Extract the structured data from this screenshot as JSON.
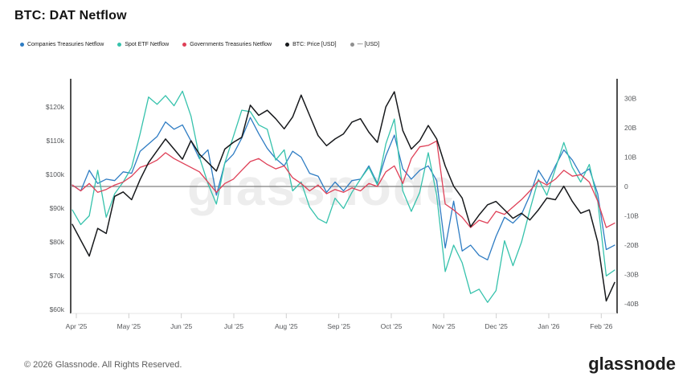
{
  "title": "BTC: DAT Netflow",
  "watermark": "glassnode",
  "footer": {
    "copyright": "© 2026 Glassnode. All Rights Reserved.",
    "logo_text": "glassnode"
  },
  "legend": [
    {
      "label": "Companies Treasuries Netflow",
      "color": "#2e7cc3"
    },
    {
      "label": "Spot ETF Netflow",
      "color": "#36c2ac"
    },
    {
      "label": "Governments Treasuries Netflow",
      "color": "#df4057"
    },
    {
      "label": "BTC: Price [USD]",
      "color": "#17191c"
    },
    {
      "label": "--- [USD]",
      "color": "#8f8f8f"
    }
  ],
  "chart_data": {
    "type": "line",
    "title": "BTC: DAT Netflow",
    "grid": false,
    "x_span": [
      "Apr '25",
      "Feb '26"
    ],
    "x_tick_labels": [
      "Apr '25",
      "May '25",
      "Jun '25",
      "Jul '25",
      "Aug '25",
      "Sep '25",
      "Oct '25",
      "Nov '25",
      "Dec '25",
      "Jan '26",
      "Feb '26"
    ],
    "left_axis": {
      "unit": "USD",
      "tick_labels": [
        "$120k",
        "$110k",
        "$100k",
        "$90k",
        "$80k",
        "$70k",
        "$60k"
      ],
      "tick_values": [
        120,
        110,
        100,
        90,
        80,
        70,
        60
      ],
      "range_k": [
        58,
        128
      ]
    },
    "right_axis": {
      "unit": "USD billions",
      "tick_labels": [
        "30B",
        "20B",
        "10B",
        "0",
        "-10B",
        "-20B",
        "-30B",
        "-40B"
      ],
      "tick_values": [
        30,
        20,
        10,
        0,
        -10,
        -20,
        -30,
        -40
      ],
      "range_b": [
        -43,
        37
      ]
    },
    "note": "Series values are evenly spaced in time from Apr 1 '25 to Feb 11 '26 (65 samples, ~5-day step). Netflow series read on right axis (billions USD); BTC price on left axis (thousands USD).",
    "series": [
      {
        "name": "--- [USD]",
        "axis": "right",
        "color": "#7f7f7f",
        "constant_value": 0
      },
      {
        "name": "Companies Treasuries Netflow",
        "axis": "right",
        "color": "#2e7cc3",
        "values": [
          0.5,
          -1.5,
          5.5,
          1.0,
          2.5,
          2.0,
          5.0,
          4.5,
          12.0,
          14.5,
          17.0,
          22.0,
          19.5,
          21.0,
          15.5,
          9.5,
          12.5,
          -3.0,
          8.0,
          11.0,
          16.5,
          23.5,
          18.0,
          13.0,
          9.5,
          7.0,
          12.0,
          10.0,
          4.5,
          3.5,
          -2.0,
          1.5,
          -1.5,
          2.0,
          2.5,
          7.0,
          1.0,
          10.5,
          17.5,
          6.0,
          2.5,
          5.5,
          7.0,
          2.0,
          -21.0,
          -5.0,
          -22.0,
          -20.0,
          -23.5,
          -25.0,
          -17.0,
          -10.5,
          -12.5,
          -9.5,
          -3.0,
          5.5,
          1.0,
          7.0,
          12.5,
          9.0,
          4.0,
          6.0,
          -2.5,
          -21.5,
          -20.0
        ]
      },
      {
        "name": "Spot ETF Netflow",
        "axis": "right",
        "color": "#36c2ac",
        "values": [
          -8.0,
          -13.0,
          -10.0,
          5.5,
          -10.5,
          -2.5,
          1.5,
          6.5,
          18.0,
          30.5,
          28.0,
          31.0,
          27.5,
          32.5,
          24.0,
          10.0,
          1.0,
          -6.0,
          8.0,
          17.0,
          26.0,
          25.5,
          21.0,
          19.5,
          9.0,
          12.5,
          -1.5,
          1.5,
          -7.0,
          -11.0,
          -12.5,
          -4.0,
          -7.5,
          -2.0,
          2.5,
          6.5,
          0.5,
          14.5,
          23.0,
          -1.5,
          -8.5,
          -2.0,
          11.5,
          -3.0,
          -29.0,
          -20.0,
          -26.0,
          -36.5,
          -35.0,
          -39.5,
          -35.5,
          -18.5,
          -27.0,
          -19.0,
          -8.0,
          2.5,
          -3.0,
          6.0,
          15.0,
          6.5,
          1.5,
          7.5,
          -5.0,
          -30.5,
          -28.5
        ]
      },
      {
        "name": "Governments Treasuries Netflow",
        "axis": "right",
        "color": "#df4057",
        "values": [
          0.5,
          -1.5,
          1.0,
          -2.0,
          -1.0,
          0.5,
          1.5,
          3.5,
          6.5,
          7.5,
          9.0,
          11.5,
          9.5,
          8.0,
          6.5,
          5.0,
          1.5,
          -2.0,
          1.0,
          2.5,
          5.5,
          8.5,
          9.5,
          7.5,
          6.0,
          7.0,
          3.0,
          1.0,
          -1.5,
          0.5,
          -2.5,
          -1.0,
          -2.0,
          -0.5,
          -1.5,
          1.0,
          0.0,
          5.0,
          7.0,
          1.0,
          9.5,
          13.5,
          14.0,
          15.5,
          -6.0,
          -8.0,
          -10.5,
          -14.0,
          -11.5,
          -12.5,
          -8.5,
          -9.5,
          -7.0,
          -4.5,
          -1.5,
          2.0,
          0.5,
          2.5,
          5.5,
          3.5,
          4.0,
          1.5,
          -5.0,
          -14.0,
          -12.5
        ]
      },
      {
        "name": "BTC: Price [USD]",
        "axis": "left",
        "color": "#17191c",
        "values": [
          85.2,
          80.5,
          75.8,
          84.0,
          82.5,
          93.5,
          94.8,
          92.5,
          98.5,
          103.5,
          107.0,
          110.5,
          107.5,
          104.5,
          110.0,
          106.0,
          103.5,
          101.0,
          107.5,
          109.5,
          111.0,
          120.5,
          117.5,
          119.0,
          116.5,
          113.5,
          117.0,
          123.5,
          117.5,
          111.5,
          108.5,
          110.5,
          112.0,
          115.5,
          116.5,
          112.5,
          109.5,
          120.0,
          124.5,
          113.0,
          107.5,
          110.0,
          114.5,
          110.5,
          102.5,
          96.5,
          93.0,
          84.5,
          88.0,
          91.0,
          92.0,
          89.5,
          87.0,
          88.5,
          86.5,
          89.5,
          93.0,
          92.5,
          96.5,
          92.0,
          88.5,
          89.5,
          80.0,
          62.5,
          68.0
        ]
      }
    ]
  }
}
